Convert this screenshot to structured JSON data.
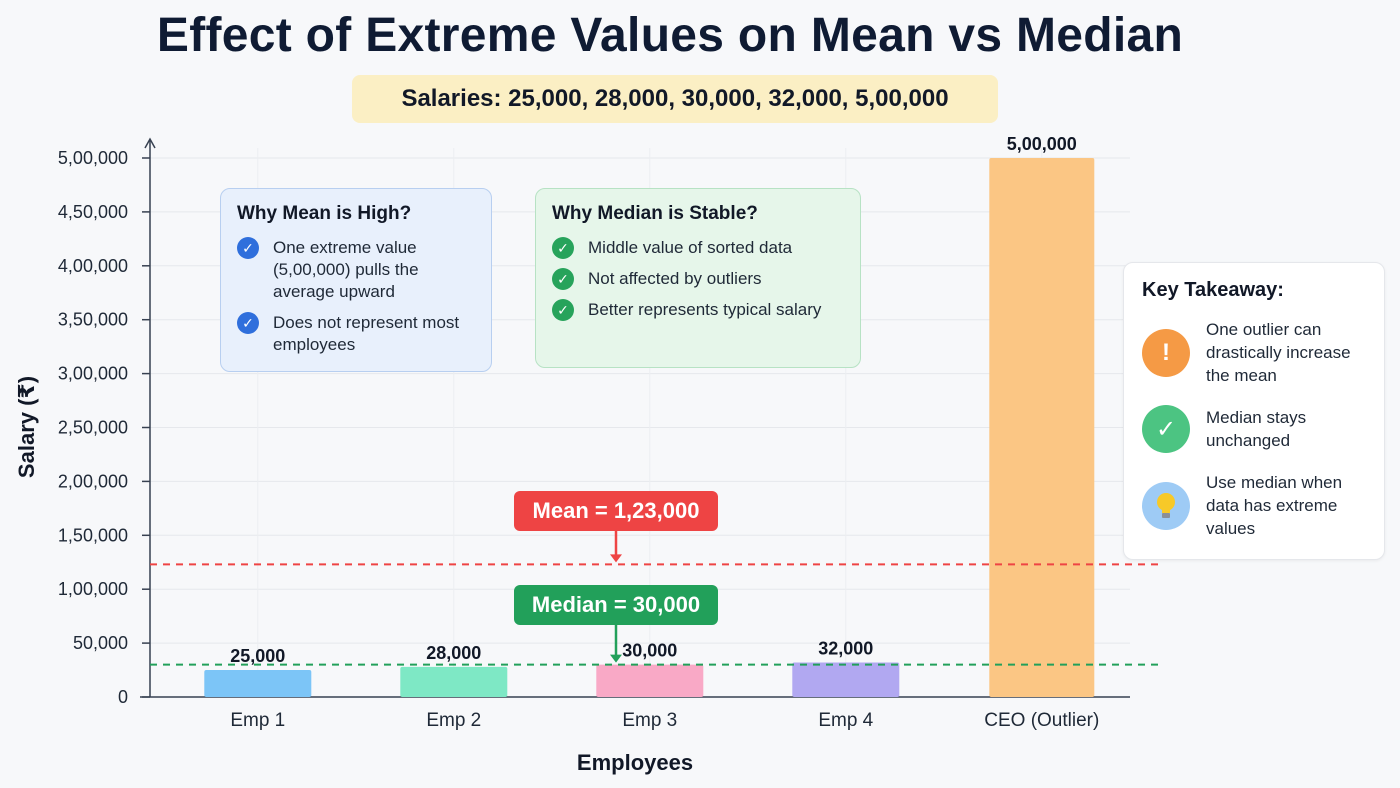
{
  "title": "Effect of Extreme Values on Mean vs Median",
  "salaries_label": "Salaries: 25,000, 28,000, 30,000, 32,000, 5,00,000",
  "chart_data": {
    "type": "bar",
    "categories": [
      "Emp 1",
      "Emp 2",
      "Emp 3",
      "Emp 4",
      "CEO (Outlier)"
    ],
    "values": [
      25000,
      28000,
      30000,
      32000,
      500000
    ],
    "value_labels": [
      "25,000",
      "28,000",
      "30,000",
      "32,000",
      "5,00,000"
    ],
    "bar_colors": [
      "#7cc5f7",
      "#7ee8c5",
      "#f9a9c6",
      "#b1a8f1",
      "#fbc684"
    ],
    "xlabel": "Employees",
    "ylabel": "Salary (₹)",
    "ylim": [
      0,
      500000
    ],
    "yticks": [
      0,
      50000,
      100000,
      150000,
      200000,
      250000,
      300000,
      350000,
      400000,
      450000,
      500000
    ],
    "ytick_labels": [
      "0",
      "50,000",
      "1,00,000",
      "1,50,000",
      "2,00,000",
      "2,50,000",
      "3,00,000",
      "3,50,000",
      "4,00,000",
      "4,50,000",
      "5,00,000"
    ],
    "grid": true,
    "reference_lines": [
      {
        "name": "Mean",
        "value": 123000,
        "label": "Mean = 1,23,000",
        "color": "#ee4444"
      },
      {
        "name": "Median",
        "value": 30000,
        "label": "Median = 30,000",
        "color": "#22a05a"
      }
    ]
  },
  "mean_box": {
    "heading": "Why Mean is High?",
    "items": [
      "One extreme value (5,00,000) pulls the average upward",
      "Does not represent most employees"
    ]
  },
  "median_box": {
    "heading": "Why Median is Stable?",
    "items": [
      "Middle value of sorted data",
      "Not affected by outliers",
      "Better represents typical salary"
    ]
  },
  "takeaway": {
    "heading": "Key Takeaway:",
    "items": [
      {
        "icon": "exclamation-icon",
        "text": "One outlier can drastically increase the mean"
      },
      {
        "icon": "check-icon",
        "text": "Median stays unchanged"
      },
      {
        "icon": "lightbulb-icon",
        "text": "Use median when data has extreme values"
      }
    ]
  },
  "colors": {
    "mean": "#ee4444",
    "median": "#22a05a",
    "title": "#0f1b33",
    "salaries_bg": "#fbefc4"
  }
}
